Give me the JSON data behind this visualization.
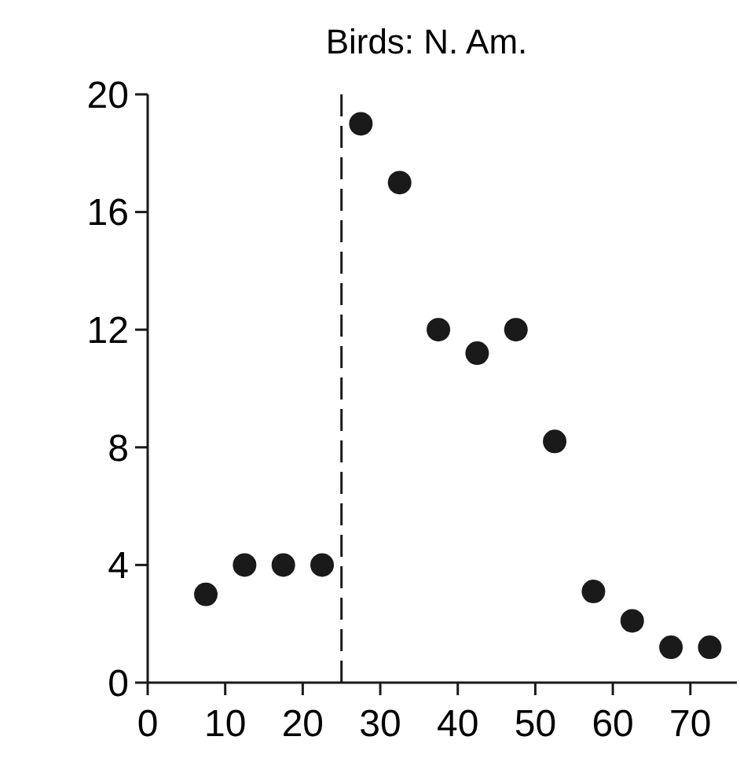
{
  "chart_data": {
    "type": "scatter",
    "title": "Birds: N. Am.",
    "x": [
      7.5,
      12.5,
      17.5,
      22.5,
      27.5,
      32.5,
      37.5,
      42.5,
      47.5,
      52.5,
      57.5,
      62.5,
      67.5,
      72.5
    ],
    "series": [
      {
        "color": "#1a1a1a",
        "values": [
          3,
          4,
          4,
          4,
          19,
          17,
          12,
          11.2,
          12,
          8.2,
          3.1,
          2.1,
          1.2,
          1.2
        ]
      }
    ],
    "xlim": [
      0,
      76
    ],
    "xticks": [
      0,
      10,
      20,
      30,
      40,
      50,
      60,
      70
    ],
    "ylim": [
      0,
      20
    ],
    "yticks": [
      0,
      4,
      8,
      12,
      16,
      20
    ],
    "ref_lines": [
      {
        "axis": "x",
        "value": 25,
        "line_style": "dashed",
        "color": "#1a1a1a"
      }
    ],
    "marker": "circle",
    "grid": false
  }
}
